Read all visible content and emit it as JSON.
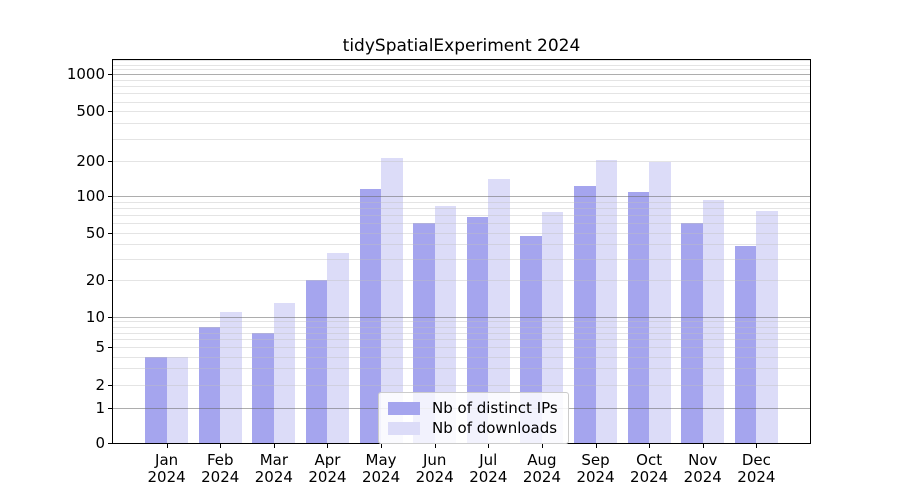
{
  "title": "tidySpatialExperiment 2024",
  "legend": {
    "items": [
      {
        "label": "Nb of distinct IPs",
        "color": "#a5a5ee"
      },
      {
        "label": "Nb of downloads",
        "color": "#dcdcf8"
      }
    ]
  },
  "chart_data": {
    "type": "bar",
    "title": "tidySpatialExperiment 2024",
    "categories": [
      "Jan 2024",
      "Feb 2024",
      "Mar 2024",
      "Apr 2024",
      "May 2024",
      "Jun 2024",
      "Jul 2024",
      "Aug 2024",
      "Sep 2024",
      "Oct 2024",
      "Nov 2024",
      "Dec 2024"
    ],
    "series": [
      {
        "name": "Nb of distinct IPs",
        "color": "#a5a5ee",
        "values": [
          4,
          8,
          7,
          20,
          115,
          60,
          67,
          47,
          122,
          107,
          60,
          39
        ]
      },
      {
        "name": "Nb of downloads",
        "color": "#dcdcf8",
        "values": [
          4,
          11,
          13,
          34,
          210,
          82,
          139,
          74,
          202,
          197,
          93,
          75
        ]
      }
    ],
    "xlabel": "",
    "ylabel": "",
    "yscale": "symlog",
    "y_ticks": [
      0,
      1,
      2,
      5,
      10,
      20,
      50,
      100,
      200,
      500,
      1000
    ],
    "ylim": [
      0,
      1300
    ],
    "grid": "horizontal major and minor gridlines",
    "legend_position": "lower center inside plot",
    "bar_width_fraction": 0.4
  }
}
